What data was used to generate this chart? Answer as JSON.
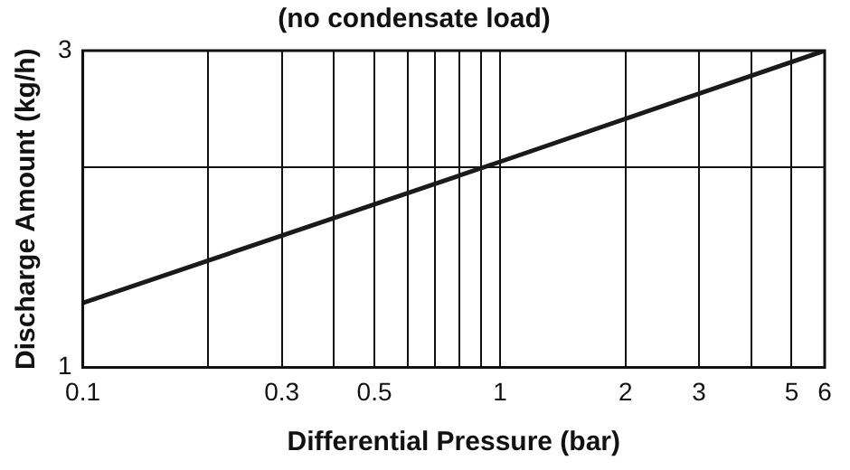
{
  "chart_data": {
    "type": "line",
    "title": "(no condensate load)",
    "xlabel": "Differential Pressure (bar)",
    "ylabel": "Discharge Amount (kg/h)",
    "x": [
      0.1,
      1,
      6
    ],
    "series": [
      {
        "color": "#1a1a1a",
        "values": [
          1.25,
          2.04,
          3
        ]
      }
    ],
    "log": "xy",
    "xlim": [
      0.1,
      6
    ],
    "ylim": [
      1,
      3
    ],
    "xticks": [
      0.1,
      {
        "value": 0.2,
        "label": null
      },
      0.3,
      {
        "value": 0.4,
        "label": null
      },
      0.5,
      {
        "value": 0.6,
        "label": null
      },
      {
        "value": 0.7,
        "label": null
      },
      {
        "value": 0.8,
        "label": null
      },
      {
        "value": 0.9,
        "label": null
      },
      1,
      2,
      3,
      {
        "value": 4,
        "label": null
      },
      5,
      6
    ],
    "yticks": [
      1,
      {
        "value": 2,
        "label": null
      },
      3
    ],
    "grid": true,
    "legend": false,
    "marker": "none",
    "line_style": "solid"
  }
}
